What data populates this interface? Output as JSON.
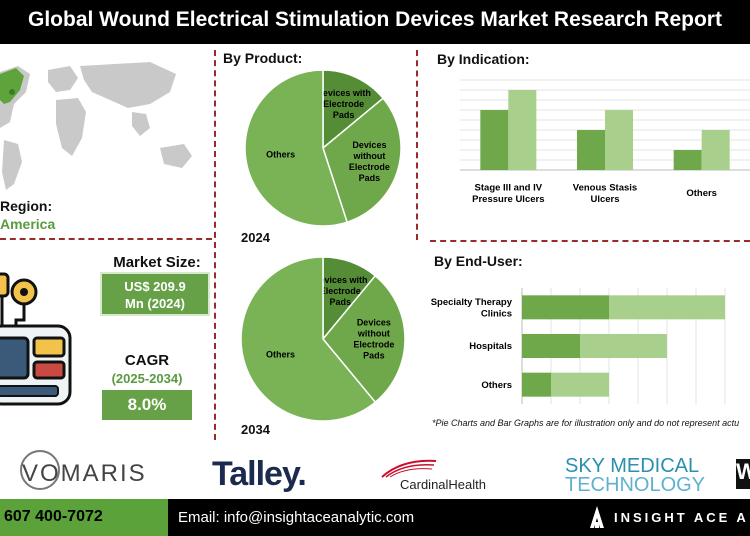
{
  "header": {
    "title": "Global Wound Electrical Stimulation Devices Market Research Report"
  },
  "region": {
    "label": "Region:",
    "value": "America"
  },
  "market_size": {
    "label": "Market Size:",
    "value_line1": "US$ 209.9",
    "value_line2": "Mn (2024)"
  },
  "cagr": {
    "label": "CAGR",
    "years": "(2025-2034)",
    "value": "8.0%"
  },
  "panels": {
    "product_title": "By Product:",
    "indication_title": "By Indication:",
    "enduser_title": "By End-User:",
    "year_2024": "2024",
    "year_2034": "2034"
  },
  "note": "*Pie Charts and Bar Graphs are for illustration only and do not represent actu",
  "logos": {
    "vomaris": "VOMARIS",
    "talley": "Talley.",
    "cardinal": "CardinalHealth",
    "sky_line1": "SKY MEDICAL",
    "sky_line2": "TECHNOLOGY",
    "w": "W"
  },
  "footer": {
    "phone": "607 400-7072",
    "email": "Email: info@insightaceanalytic.com",
    "brand": "INSIGHT ACE A"
  },
  "colors": {
    "dark_green": "#548d36",
    "mid_green": "#6fa84a",
    "light_green": "#a9cf8c",
    "pie_main": "#79b356",
    "accent": "#66a047"
  },
  "chart_data": [
    {
      "type": "pie",
      "title": "By Product:",
      "year": "2024",
      "categories": [
        "Devices with Electrode Pads",
        "Devices without Electrode Pads",
        "Others"
      ],
      "labels": [
        [
          "Devices with",
          "Electrode",
          "Pads"
        ],
        [
          "Devices",
          "without",
          "Electrode",
          "Pads"
        ],
        [
          "Others"
        ]
      ],
      "values": [
        14,
        31,
        55
      ]
    },
    {
      "type": "pie",
      "title": "By Product:",
      "year": "2034",
      "categories": [
        "Devices with Electrode Pads",
        "Devices without Electrode Pads",
        "Others"
      ],
      "labels": [
        [
          "Devices with",
          "Electrode",
          "Pads"
        ],
        [
          "Devices",
          "without",
          "Electrode",
          "Pads"
        ],
        [
          "Others"
        ]
      ],
      "values": [
        11,
        28,
        61
      ]
    },
    {
      "type": "bar",
      "title": "By Indication:",
      "categories": [
        "Stage III and IV Pressure Ulcers",
        "Venous Stasis Ulcers",
        "Others"
      ],
      "labels": [
        [
          "Stage III and IV",
          "Pressure Ulcers"
        ],
        [
          "Venous Stasis",
          "Ulcers"
        ],
        [
          "Others"
        ]
      ],
      "series": [
        {
          "values": [
            3.0,
            2.0,
            1.0
          ]
        },
        {
          "values": [
            4.0,
            3.0,
            2.0
          ]
        }
      ],
      "ylim": [
        0,
        4.5
      ],
      "grid": true
    },
    {
      "type": "bar",
      "orientation": "horizontal",
      "stacked": true,
      "title": "By End-User:",
      "categories": [
        "Specialty Therapy Clinics",
        "Hospitals",
        "Others"
      ],
      "labels": [
        [
          "Specialty Therapy",
          "Clinics"
        ],
        [
          "Hospitals"
        ],
        [
          "Others"
        ]
      ],
      "series": [
        {
          "values": [
            3.0,
            2.0,
            1.0
          ]
        },
        {
          "values": [
            4.0,
            3.0,
            2.0
          ]
        }
      ],
      "xlim": [
        0,
        10
      ],
      "grid": true
    }
  ]
}
